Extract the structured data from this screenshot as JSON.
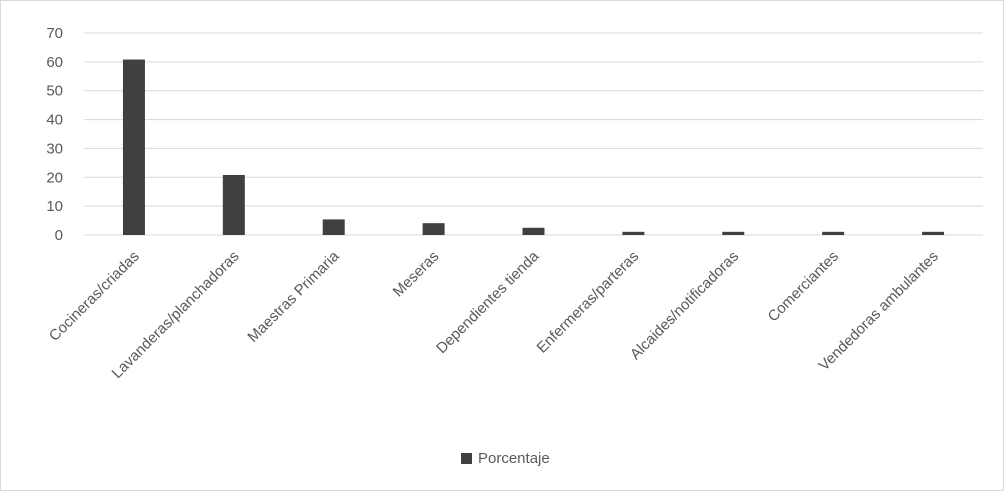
{
  "chart_data": {
    "type": "bar",
    "categories": [
      "Cocineras/criadas",
      "Lavanderas/planchadoras",
      "Maestras Primaria",
      "Meseras",
      "Dependientes tienda",
      "Enfermeras/parteras",
      "Alcaides/notificadoras",
      "Comerciantes",
      "Vendedoras ambulantes"
    ],
    "series": [
      {
        "name": "Porcentaje",
        "values": [
          60.8,
          20.8,
          5.4,
          4.1,
          2.5,
          1.1,
          1.1,
          1.1,
          1.1
        ]
      }
    ],
    "yticks": [
      "0",
      "10",
      "20",
      "30",
      "40",
      "50",
      "60",
      "70"
    ],
    "ylim": [
      0,
      70
    ],
    "grid": true,
    "legend_position": "bottom",
    "colors": {
      "bar": "#404040",
      "grid": "#d9d9d9",
      "text": "#595959"
    }
  }
}
